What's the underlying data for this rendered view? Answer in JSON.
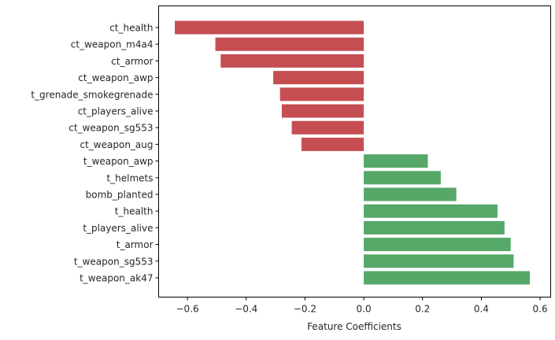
{
  "chart_data": {
    "type": "bar",
    "orientation": "horizontal",
    "xlabel": "Feature Coefficients",
    "ylabel": "",
    "title": "",
    "xlim": [
      -0.698,
      0.636
    ],
    "xticks": [
      -0.6,
      -0.4,
      -0.2,
      0.0,
      0.2,
      0.4,
      0.6
    ],
    "xtick_labels": [
      "−0.6",
      "−0.4",
      "−0.2",
      "0.0",
      "0.2",
      "0.4",
      "0.6"
    ],
    "grid": false,
    "categories": [
      "ct_health",
      "ct_weapon_m4a4",
      "ct_armor",
      "ct_weapon_awp",
      "t_grenade_smokegrenade",
      "ct_players_alive",
      "ct_weapon_sg553",
      "ct_weapon_aug",
      "t_weapon_awp",
      "t_helmets",
      "bomb_planted",
      "t_health",
      "t_players_alive",
      "t_armor",
      "t_weapon_sg553",
      "t_weapon_ak47"
    ],
    "values": [
      -0.643,
      -0.505,
      -0.487,
      -0.308,
      -0.285,
      -0.279,
      -0.245,
      -0.212,
      0.218,
      0.262,
      0.315,
      0.455,
      0.479,
      0.5,
      0.51,
      0.565
    ],
    "colors": {
      "negative": "#c44e52",
      "positive": "#55a868"
    }
  }
}
